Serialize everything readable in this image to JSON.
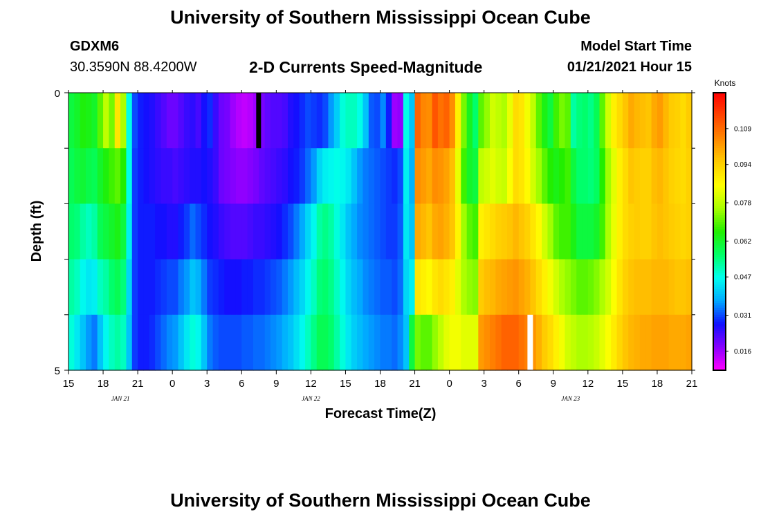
{
  "header": {
    "title": "University of Southern Mississippi Ocean Cube",
    "station_id": "GDXM6",
    "station_position": "30.3590N 88.4200W",
    "plot_title": "2-D Currents Speed-Magnitude",
    "model_start_label": "Model Start Time",
    "model_start_value": "01/21/2021 Hour 15"
  },
  "footer": {
    "title": "University of Southern Mississippi Ocean Cube"
  },
  "chart_data": {
    "type": "heatmap",
    "title": "2-D Currents Speed-Magnitude",
    "xlabel": "Forecast Time(Z)",
    "ylabel": "Depth (ft)",
    "x_hours_from_start": [
      0,
      54
    ],
    "x_tick_labels": [
      "15",
      "18",
      "21",
      "0",
      "3",
      "6",
      "9",
      "12",
      "15",
      "18",
      "21",
      "0",
      "3",
      "6",
      "9",
      "12",
      "15",
      "18",
      "21"
    ],
    "date_labels": [
      {
        "label": "JAN 21",
        "hour": 4.5
      },
      {
        "label": "JAN 22",
        "hour": 21
      },
      {
        "label": "JAN 23",
        "hour": 43.5
      }
    ],
    "y_tick_labels": [
      "0",
      "5"
    ],
    "ylim": [
      0,
      5
    ],
    "depth_rows": 5,
    "time_steps_per_hour": 2,
    "unit": "Knots",
    "colorbar_ticks": [
      0.016,
      0.031,
      0.047,
      0.062,
      0.078,
      0.094,
      0.109
    ],
    "colorbar_range": [
      0.008,
      0.124
    ],
    "colorbar_colors": [
      "#ff00ff",
      "#8800ff",
      "#1010ff",
      "#00aaff",
      "#00ffee",
      "#00ff66",
      "#22ee00",
      "#aaff00",
      "#ffff00",
      "#ffcc00",
      "#ff8800",
      "#ff4400",
      "#ff0000"
    ],
    "black_marker": {
      "hour": 16.5,
      "row": 0
    },
    "white_marker": {
      "hour": 40,
      "row": 4
    },
    "series_profiles": [
      [
        0.06,
        0.062,
        0.065,
        0.064,
        0.062,
        0.07,
        0.078,
        0.072,
        0.09,
        0.076,
        0.047,
        0.031,
        0.028,
        0.027,
        0.026,
        0.024,
        0.022,
        0.02,
        0.02,
        0.022,
        0.024,
        0.025,
        0.023,
        0.027,
        0.029,
        0.024,
        0.02,
        0.019,
        0.016,
        0.014,
        0.013,
        0.014,
        0.016,
        0.019,
        0.021,
        0.022,
        0.022,
        0.023,
        0.026,
        0.027,
        0.029,
        0.031,
        0.03,
        0.029,
        0.031,
        0.036,
        0.041,
        0.048,
        0.05,
        0.05,
        0.047,
        0.04,
        0.032,
        0.031,
        0.035,
        0.028,
        0.016,
        0.017,
        0.047,
        0.04,
        0.11,
        0.105,
        0.104,
        0.112,
        0.108,
        0.11,
        0.104,
        0.088,
        0.072,
        0.063,
        0.056,
        0.07,
        0.074,
        0.08,
        0.078,
        0.076,
        0.083,
        0.092,
        0.09,
        0.084,
        0.078,
        0.07,
        0.064,
        0.06,
        0.068,
        0.072,
        0.07,
        0.052,
        0.055,
        0.056,
        0.054,
        0.058,
        0.07,
        0.08,
        0.088,
        0.092,
        0.096,
        0.1,
        0.098,
        0.097,
        0.096,
        0.1,
        0.102,
        0.098,
        0.095,
        0.094,
        0.092,
        0.095
      ],
      [
        0.058,
        0.06,
        0.061,
        0.059,
        0.058,
        0.062,
        0.065,
        0.068,
        0.07,
        0.066,
        0.047,
        0.03,
        0.028,
        0.027,
        0.026,
        0.025,
        0.024,
        0.024,
        0.023,
        0.024,
        0.025,
        0.026,
        0.026,
        0.027,
        0.026,
        0.024,
        0.02,
        0.019,
        0.018,
        0.017,
        0.017,
        0.018,
        0.019,
        0.021,
        0.022,
        0.023,
        0.024,
        0.025,
        0.027,
        0.028,
        0.03,
        0.033,
        0.036,
        0.042,
        0.045,
        0.046,
        0.047,
        0.046,
        0.044,
        0.04,
        0.036,
        0.034,
        0.033,
        0.032,
        0.031,
        0.03,
        0.029,
        0.031,
        0.045,
        0.038,
        0.104,
        0.102,
        0.1,
        0.104,
        0.103,
        0.101,
        0.097,
        0.083,
        0.068,
        0.062,
        0.06,
        0.078,
        0.08,
        0.082,
        0.08,
        0.079,
        0.085,
        0.092,
        0.09,
        0.086,
        0.08,
        0.075,
        0.07,
        0.066,
        0.064,
        0.066,
        0.068,
        0.06,
        0.056,
        0.056,
        0.055,
        0.057,
        0.066,
        0.075,
        0.082,
        0.088,
        0.092,
        0.096,
        0.095,
        0.094,
        0.094,
        0.097,
        0.098,
        0.096,
        0.094,
        0.093,
        0.092,
        0.094
      ],
      [
        0.056,
        0.055,
        0.052,
        0.05,
        0.052,
        0.058,
        0.06,
        0.062,
        0.064,
        0.06,
        0.045,
        0.03,
        0.028,
        0.028,
        0.028,
        0.027,
        0.027,
        0.026,
        0.026,
        0.028,
        0.03,
        0.033,
        0.031,
        0.029,
        0.027,
        0.026,
        0.024,
        0.023,
        0.022,
        0.022,
        0.022,
        0.023,
        0.024,
        0.024,
        0.025,
        0.026,
        0.027,
        0.029,
        0.031,
        0.034,
        0.037,
        0.042,
        0.046,
        0.052,
        0.054,
        0.052,
        0.048,
        0.044,
        0.04,
        0.037,
        0.035,
        0.034,
        0.033,
        0.032,
        0.031,
        0.03,
        0.03,
        0.032,
        0.044,
        0.04,
        0.1,
        0.098,
        0.096,
        0.1,
        0.101,
        0.099,
        0.096,
        0.087,
        0.075,
        0.07,
        0.068,
        0.088,
        0.09,
        0.092,
        0.094,
        0.095,
        0.096,
        0.098,
        0.096,
        0.094,
        0.09,
        0.086,
        0.08,
        0.075,
        0.07,
        0.068,
        0.068,
        0.064,
        0.06,
        0.06,
        0.06,
        0.062,
        0.068,
        0.076,
        0.083,
        0.088,
        0.092,
        0.094,
        0.095,
        0.094,
        0.094,
        0.096,
        0.097,
        0.096,
        0.095,
        0.094,
        0.093,
        0.094
      ],
      [
        0.052,
        0.05,
        0.046,
        0.044,
        0.045,
        0.05,
        0.052,
        0.056,
        0.058,
        0.055,
        0.042,
        0.03,
        0.028,
        0.028,
        0.028,
        0.029,
        0.03,
        0.031,
        0.031,
        0.034,
        0.036,
        0.04,
        0.038,
        0.034,
        0.03,
        0.029,
        0.028,
        0.027,
        0.027,
        0.027,
        0.028,
        0.028,
        0.029,
        0.029,
        0.03,
        0.031,
        0.032,
        0.034,
        0.036,
        0.039,
        0.042,
        0.046,
        0.05,
        0.055,
        0.056,
        0.054,
        0.05,
        0.046,
        0.042,
        0.039,
        0.037,
        0.035,
        0.034,
        0.033,
        0.032,
        0.032,
        0.031,
        0.033,
        0.042,
        0.045,
        0.09,
        0.088,
        0.086,
        0.09,
        0.092,
        0.09,
        0.088,
        0.082,
        0.076,
        0.074,
        0.073,
        0.095,
        0.097,
        0.098,
        0.1,
        0.101,
        0.102,
        0.103,
        0.101,
        0.099,
        0.096,
        0.092,
        0.088,
        0.084,
        0.08,
        0.076,
        0.074,
        0.072,
        0.07,
        0.07,
        0.071,
        0.073,
        0.076,
        0.08,
        0.085,
        0.09,
        0.094,
        0.096,
        0.097,
        0.097,
        0.097,
        0.098,
        0.098,
        0.098,
        0.097,
        0.096,
        0.096,
        0.097
      ],
      [
        0.048,
        0.044,
        0.04,
        0.036,
        0.034,
        0.04,
        0.046,
        0.05,
        0.052,
        0.05,
        0.04,
        0.03,
        0.028,
        0.028,
        0.029,
        0.031,
        0.033,
        0.035,
        0.036,
        0.04,
        0.044,
        0.048,
        0.046,
        0.04,
        0.034,
        0.032,
        0.031,
        0.031,
        0.031,
        0.031,
        0.032,
        0.032,
        0.033,
        0.033,
        0.034,
        0.035,
        0.036,
        0.038,
        0.04,
        0.043,
        0.046,
        0.05,
        0.054,
        0.058,
        0.058,
        0.056,
        0.052,
        0.048,
        0.044,
        0.041,
        0.039,
        0.037,
        0.036,
        0.035,
        0.034,
        0.034,
        0.033,
        0.035,
        0.04,
        0.06,
        0.072,
        0.07,
        0.07,
        0.074,
        0.078,
        0.082,
        0.084,
        0.084,
        0.082,
        0.082,
        0.082,
        0.102,
        0.104,
        0.106,
        0.108,
        0.11,
        0.11,
        0.11,
        0.108,
        0.106,
        0.103,
        0.099,
        0.095,
        0.092,
        0.088,
        0.084,
        0.08,
        0.078,
        0.076,
        0.076,
        0.077,
        0.079,
        0.082,
        0.085,
        0.089,
        0.093,
        0.096,
        0.098,
        0.099,
        0.1,
        0.1,
        0.101,
        0.101,
        0.101,
        0.1,
        0.1,
        0.1,
        0.101
      ]
    ]
  }
}
